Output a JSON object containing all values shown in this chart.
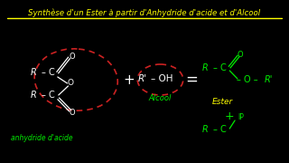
{
  "bg_color": "#000000",
  "title_text": "Synthèse d'un Ester à partir d'Anhydride d'acide et d'Alcool",
  "title_color": "#FFFF00",
  "title_fontsize": 6.2,
  "line_color": "#FFFF00",
  "green_color": "#00EE00",
  "white_color": "#FFFFFF",
  "red_color": "#CC2222",
  "yellow_color": "#FFFF00",
  "anhydride_label": "anhydride d'acide",
  "alcohol_label": "Alcool",
  "ester_label": "Ester"
}
